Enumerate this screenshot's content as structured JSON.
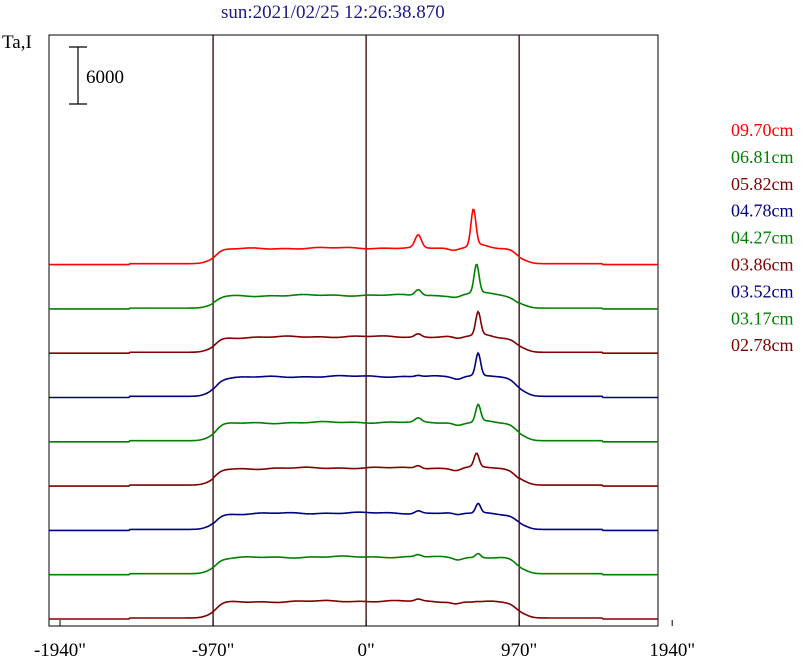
{
  "title": "sun:2021/02/25 12:26:38.870",
  "chart_data": {
    "type": "line",
    "ylabel": "Ta,I",
    "scale_bar": {
      "label": "6000",
      "value": 6000
    },
    "xlim": [
      -2010,
      1850
    ],
    "x_ticks": [
      {
        "value": -1940,
        "label": "-1940\""
      },
      {
        "value": -970,
        "label": "-970\""
      },
      {
        "value": 0,
        "label": "0\""
      },
      {
        "value": 970,
        "label": "970\""
      },
      {
        "value": 1940,
        "label": "1940\""
      }
    ],
    "vertical_lines": [
      -970,
      0,
      970
    ],
    "limb": [
      -970,
      970
    ],
    "series": [
      {
        "name": "09.70cm",
        "color": "#ff0000",
        "baseline": 5000,
        "plateau": 4000,
        "peak_x": 680,
        "peak": 13200,
        "side_x": 330,
        "side": 5600
      },
      {
        "name": "06.81cm",
        "color": "#008000",
        "baseline": 2500,
        "plateau": 3300,
        "peak_x": 700,
        "peak": 10500,
        "side_x": 330,
        "side": 3500
      },
      {
        "name": "05.82cm",
        "color": "#800000",
        "baseline": 0,
        "plateau": 4000,
        "peak_x": 710,
        "peak": 9800,
        "side_x": 330,
        "side": 3200
      },
      {
        "name": "04.78cm",
        "color": "#000080",
        "baseline": 0,
        "plateau": 5100,
        "peak_x": 710,
        "peak": 10800,
        "side_x": 330,
        "side": 3400
      },
      {
        "name": "04.27cm",
        "color": "#008000",
        "baseline": 0,
        "plateau": 4700,
        "peak_x": 710,
        "peak": 9000,
        "side_x": 330,
        "side": 2400
      },
      {
        "name": "03.86cm",
        "color": "#800000",
        "baseline": 0,
        "plateau": 4400,
        "peak_x": 700,
        "peak": 7800,
        "side_x": 330,
        "side": 1800
      },
      {
        "name": "03.52cm",
        "color": "#000080",
        "baseline": 0,
        "plateau": 4200,
        "peak_x": 710,
        "peak": 6600,
        "side_x": 330,
        "side": 1600
      },
      {
        "name": "03.17cm",
        "color": "#008000",
        "baseline": 0,
        "plateau": 4300,
        "peak_x": 710,
        "peak": 5300,
        "side_x": 330,
        "side": 1400
      },
      {
        "name": "02.78cm",
        "color": "#800000",
        "baseline": 0,
        "plateau": 4300,
        "peak_x": 700,
        "peak": 4400,
        "side_x": 330,
        "side": 1200
      }
    ],
    "grid": false,
    "legend_position": "right"
  }
}
